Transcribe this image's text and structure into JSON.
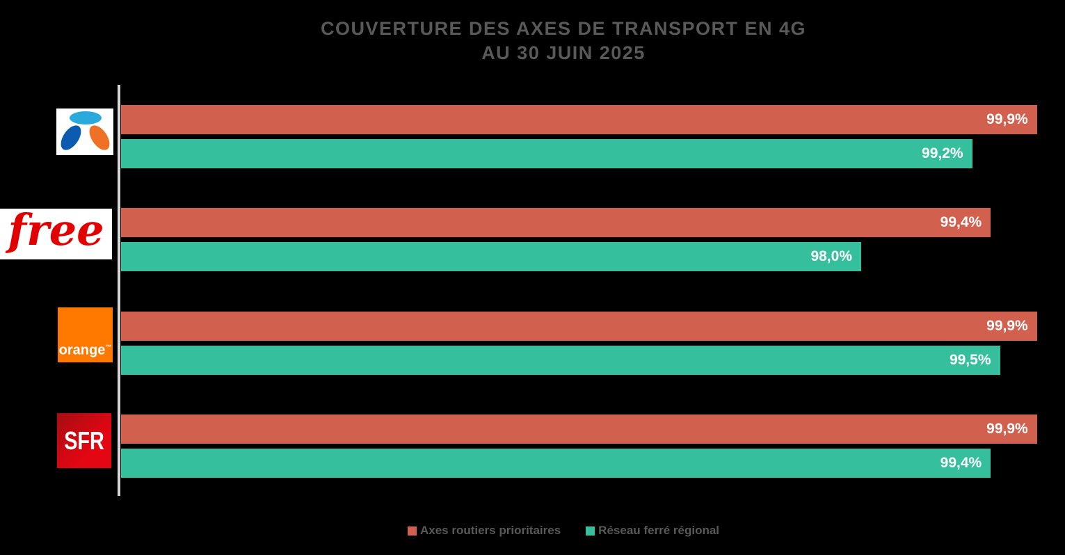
{
  "title": {
    "line1": "COUVERTURE DES AXES DE TRANSPORT EN 4G",
    "line2": "AU 30 JUIN 2025"
  },
  "chart_data": {
    "type": "bar",
    "orientation": "horizontal",
    "title": "COUVERTURE DES AXES DE TRANSPORT EN 4G AU 30 JUIN 2025",
    "x_axis": {
      "min": 90,
      "max": 100,
      "visible": false,
      "unit": "%"
    },
    "grid": false,
    "legend_position": "bottom",
    "categories": [
      {
        "id": "bouygues",
        "name": "Bouygues Telecom"
      },
      {
        "id": "free",
        "name": "Free"
      },
      {
        "id": "orange",
        "name": "Orange"
      },
      {
        "id": "sfr",
        "name": "SFR"
      }
    ],
    "series": [
      {
        "id": "routes",
        "name": "Axes routiers prioritaires",
        "color": "#D2604F",
        "color_var": "series-routes",
        "values": [
          99.9,
          99.4,
          99.9,
          99.9
        ],
        "labels": [
          "99,9%",
          "99,4%",
          "99,9%",
          "99,9%"
        ]
      },
      {
        "id": "rail",
        "name": "Réseau ferré régional",
        "color": "#35BF9C",
        "color_var": "series-rail",
        "values": [
          99.2,
          98.0,
          99.5,
          99.4
        ],
        "labels": [
          "99,2%",
          "98,0%",
          "99,5%",
          "99,4%"
        ]
      }
    ]
  },
  "logos": {
    "free_text": "free",
    "orange_text": "orange",
    "orange_tm": "™",
    "sfr_text": "SFR"
  },
  "colors": {
    "background": "#000000",
    "title-text": "#595959",
    "axis-line": "#D6D6D6",
    "series-routes": "#D2604F",
    "series-rail": "#35BF9C",
    "bar-label": "#FFFFFF",
    "bt-top": "#29A9DC",
    "bt-left": "#0B5CB1",
    "bt-right": "#EE7125",
    "free-red": "#E10000",
    "orange-bg": "#FF7900",
    "orange-text": "#FFFFFF",
    "sfr-dark": "#A50D12",
    "sfr-bright": "#E30613",
    "sfr-text": "#FFFFFF",
    "logo-bg": "#FFFFFF"
  }
}
